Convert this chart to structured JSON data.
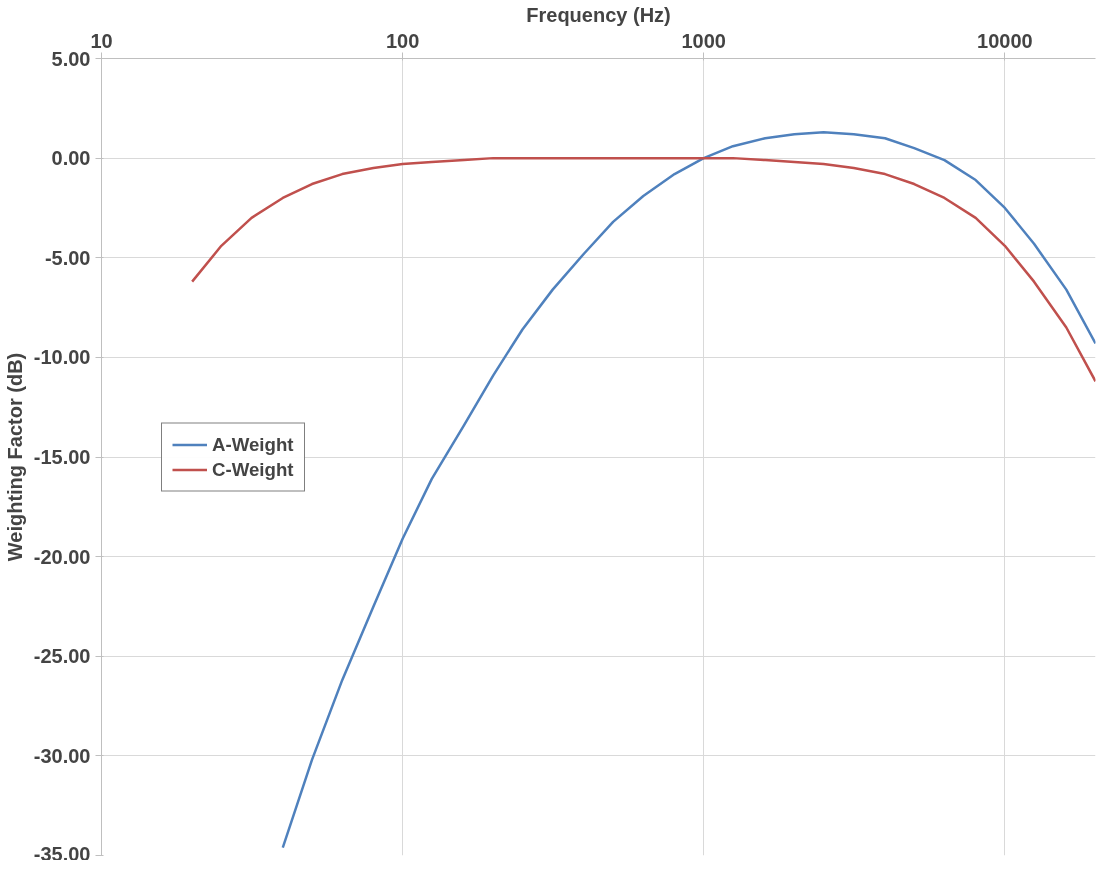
{
  "chart_data": {
    "type": "line",
    "xlabel": "Frequency (Hz)",
    "ylabel": "Weighting Factor (dB)",
    "log": "x",
    "grid": true,
    "legend": "left",
    "marker": "none",
    "line_style": "solid",
    "xlim": [
      10,
      20000
    ],
    "xticks": [
      10,
      100,
      1000,
      10000
    ],
    "ylim": [
      -35,
      5
    ],
    "yticks": [
      {
        "value": 5,
        "label": "5.00"
      },
      {
        "value": 0,
        "label": "0.00"
      },
      {
        "value": -5,
        "label": "-5.00"
      },
      {
        "value": -10,
        "label": "-10.00"
      },
      {
        "value": -15,
        "label": "-15.00"
      },
      {
        "value": -20,
        "label": "-20.00"
      },
      {
        "value": -25,
        "label": "-25.00"
      },
      {
        "value": -30,
        "label": "-30.00"
      },
      {
        "value": -35,
        "label": "-35.00"
      }
    ],
    "x": [
      20,
      25,
      31.5,
      40,
      50,
      63,
      80,
      100,
      125,
      160,
      200,
      250,
      315,
      400,
      500,
      630,
      800,
      1000,
      1250,
      1600,
      2000,
      2500,
      3150,
      4000,
      5000,
      6300,
      8000,
      10000,
      12500,
      16000,
      20000
    ],
    "series": [
      {
        "name": "A-Weight",
        "color": "#4f81bd",
        "values": [
          null,
          null,
          null,
          -34.6,
          -30.2,
          -26.2,
          -22.5,
          -19.1,
          -16.1,
          -13.4,
          -10.9,
          -8.6,
          -6.6,
          -4.8,
          -3.2,
          -1.9,
          -0.8,
          0,
          0.6,
          1.0,
          1.2,
          1.3,
          1.2,
          1.0,
          0.5,
          -0.1,
          -1.1,
          -2.5,
          -4.3,
          -6.6,
          -9.3
        ]
      },
      {
        "name": "C-Weight",
        "color": "#c0504d",
        "values": [
          -6.2,
          -4.4,
          -3.0,
          -2.0,
          -1.3,
          -0.8,
          -0.5,
          -0.3,
          -0.2,
          -0.1,
          0,
          0,
          0,
          0,
          0,
          0,
          0,
          0,
          0,
          -0.1,
          -0.2,
          -0.3,
          -0.5,
          -0.8,
          -1.3,
          -2.0,
          -3.0,
          -4.4,
          -6.2,
          -8.5,
          -11.2
        ]
      }
    ]
  }
}
